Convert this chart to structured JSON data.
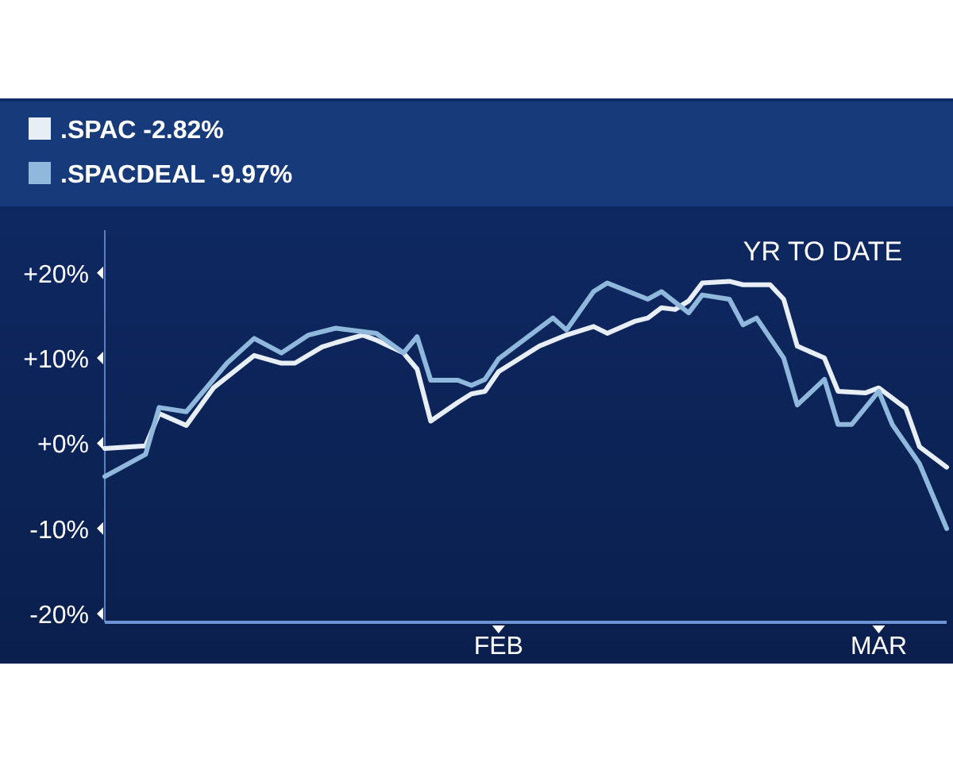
{
  "chart_data": {
    "type": "line",
    "title": "YR TO DATE",
    "legend": "top left",
    "marker": "none",
    "line_style": "solid",
    "ylim": [
      -21,
      25
    ],
    "yticks": [
      {
        "value": 20,
        "label": "+20%"
      },
      {
        "value": 10,
        "label": "+10%"
      },
      {
        "value": 0,
        "label": "+0%"
      },
      {
        "value": -10,
        "label": "-10%"
      },
      {
        "value": -20,
        "label": "-20%"
      }
    ],
    "xlim": [
      "--01-03",
      "--03-06"
    ],
    "xticks": [
      {
        "value": "--02-01",
        "label": "FEB"
      },
      {
        "value": "--03-01",
        "label": "MAR"
      }
    ],
    "series": [
      {
        "name": ".SPAC -2.82%",
        "color": "#e8eef5",
        "x": [
          "--01-03",
          "--01-06",
          "--01-07",
          "--01-09",
          "--01-11",
          "--01-14",
          "--01-16",
          "--01-17",
          "--01-19",
          "--01-20",
          "--01-22",
          "--01-23",
          "--01-25",
          "--01-26",
          "--01-27",
          "--01-29",
          "--01-30",
          "--01-31",
          "--02-01",
          "--02-04",
          "--02-06",
          "--02-08",
          "--02-09",
          "--02-11",
          "--02-12",
          "--02-13",
          "--02-14",
          "--02-15",
          "--02-16",
          "--02-18",
          "--02-19",
          "--02-21",
          "--02-22",
          "--02-23",
          "--02-25",
          "--02-26",
          "--02-28",
          "--03-01",
          "--03-03",
          "--03-04",
          "--03-06"
        ],
        "values": [
          -0.6,
          -0.3,
          3.5,
          2.1,
          6.5,
          10.3,
          9.4,
          9.4,
          11.3,
          11.8,
          12.7,
          12.1,
          10.6,
          8.7,
          2.6,
          4.8,
          5.8,
          6.1,
          8.4,
          11.4,
          12.7,
          13.7,
          12.9,
          14.3,
          14.7,
          15.9,
          15.7,
          16.7,
          18.8,
          19.0,
          18.6,
          18.6,
          16.9,
          11.4,
          10.0,
          6.1,
          5.9,
          6.5,
          4.1,
          -0.4,
          -2.8
        ]
      },
      {
        "name": ".SPACDEAL -9.97%",
        "color": "#8fb8dc",
        "x": [
          "--01-03",
          "--01-06",
          "--01-07",
          "--01-09",
          "--01-12",
          "--01-14",
          "--01-16",
          "--01-18",
          "--01-20",
          "--01-23",
          "--01-25",
          "--01-26",
          "--01-27",
          "--01-29",
          "--01-30",
          "--01-31",
          "--02-01",
          "--02-05",
          "--02-06",
          "--02-08",
          "--02-09",
          "--02-12",
          "--02-13",
          "--02-15",
          "--02-16",
          "--02-18",
          "--02-19",
          "--02-20",
          "--02-22",
          "--02-23",
          "--02-25",
          "--02-26",
          "--02-27",
          "--03-01",
          "--03-02",
          "--03-04",
          "--03-06"
        ],
        "values": [
          -3.9,
          -1.3,
          4.2,
          3.7,
          9.4,
          12.3,
          10.6,
          12.7,
          13.5,
          12.9,
          10.6,
          12.5,
          7.4,
          7.4,
          6.8,
          7.5,
          9.9,
          14.7,
          13.3,
          17.8,
          18.8,
          16.9,
          17.8,
          15.3,
          17.4,
          16.9,
          13.9,
          14.7,
          10.0,
          4.5,
          7.5,
          2.2,
          2.2,
          6.1,
          2.2,
          -2.4,
          -10.0
        ]
      }
    ]
  }
}
